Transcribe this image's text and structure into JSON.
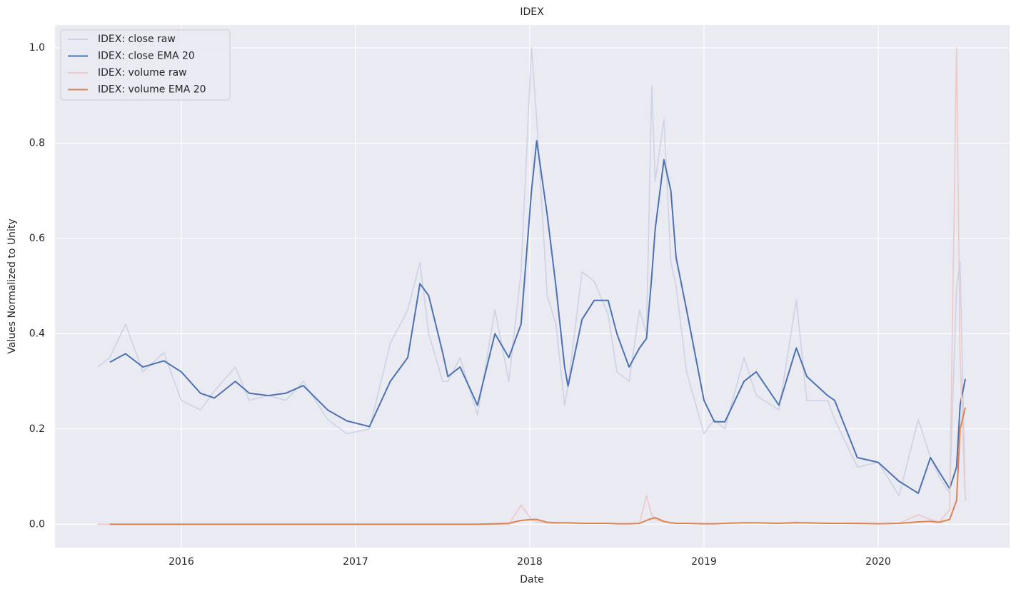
{
  "chart_data": {
    "type": "line",
    "title": "IDEX",
    "x_label": "Date",
    "y_label": "Values Normalized to Unity",
    "x": [
      2015.52,
      2015.59,
      2015.68,
      2015.78,
      2015.9,
      2016.0,
      2016.11,
      2016.19,
      2016.31,
      2016.39,
      2016.5,
      2016.6,
      2016.7,
      2016.84,
      2016.95,
      2017.08,
      2017.2,
      2017.3,
      2017.37,
      2017.42,
      2017.5,
      2017.53,
      2017.6,
      2017.7,
      2017.8,
      2017.88,
      2017.95,
      2018.01,
      2018.04,
      2018.1,
      2018.15,
      2018.2,
      2018.22,
      2018.3,
      2018.37,
      2018.45,
      2018.5,
      2018.57,
      2018.63,
      2018.67,
      2018.7,
      2018.72,
      2018.77,
      2018.81,
      2018.84,
      2018.9,
      2019.0,
      2019.06,
      2019.12,
      2019.23,
      2019.3,
      2019.43,
      2019.53,
      2019.59,
      2019.71,
      2019.75,
      2019.88,
      2020.0,
      2020.12,
      2020.23,
      2020.3,
      2020.35,
      2020.41,
      2020.45,
      2020.47,
      2020.5
    ],
    "series": [
      {
        "name": "IDEX: close raw",
        "color": "#ccd3e4",
        "values": [
          0.33,
          0.35,
          0.42,
          0.32,
          0.36,
          0.26,
          0.24,
          0.28,
          0.33,
          0.26,
          0.27,
          0.26,
          0.3,
          0.22,
          0.19,
          0.2,
          0.38,
          0.45,
          0.55,
          0.4,
          0.3,
          0.3,
          0.35,
          0.23,
          0.45,
          0.3,
          0.53,
          1.0,
          0.85,
          0.48,
          0.42,
          0.25,
          0.29,
          0.53,
          0.51,
          0.44,
          0.32,
          0.3,
          0.45,
          0.4,
          0.92,
          0.72,
          0.85,
          0.55,
          0.5,
          0.32,
          0.19,
          0.22,
          0.2,
          0.35,
          0.27,
          0.24,
          0.47,
          0.26,
          0.26,
          0.22,
          0.12,
          0.13,
          0.06,
          0.22,
          0.14,
          0.1,
          0.065,
          0.5,
          0.55,
          0.05
        ]
      },
      {
        "name": "IDEX: close EMA 20",
        "color": "#4c72b0",
        "values": [
          null,
          0.34,
          0.358,
          0.33,
          0.343,
          0.32,
          0.275,
          0.265,
          0.3,
          0.275,
          0.27,
          0.275,
          0.291,
          0.24,
          0.217,
          0.205,
          0.3,
          0.35,
          0.505,
          0.48,
          0.36,
          0.31,
          0.33,
          0.25,
          0.4,
          0.35,
          0.42,
          0.7,
          0.805,
          0.65,
          0.5,
          0.33,
          0.29,
          0.43,
          0.47,
          0.47,
          0.4,
          0.33,
          0.37,
          0.39,
          0.52,
          0.62,
          0.765,
          0.7,
          0.56,
          0.45,
          0.26,
          0.215,
          0.215,
          0.3,
          0.32,
          0.25,
          0.37,
          0.31,
          0.27,
          0.26,
          0.14,
          0.13,
          0.09,
          0.065,
          0.14,
          0.11,
          0.075,
          0.12,
          0.25,
          0.305
        ]
      },
      {
        "name": "IDEX: volume raw",
        "color": "#ecc8c6",
        "values": [
          0,
          0,
          0,
          0,
          0,
          0,
          0,
          0,
          0,
          0,
          0,
          0,
          0,
          0,
          0,
          0,
          0,
          0,
          0,
          0,
          0,
          0,
          0,
          0,
          0,
          0,
          0.04,
          0.01,
          0.005,
          0.003,
          0.002,
          0.003,
          0.002,
          0.002,
          0.002,
          0.002,
          0.001,
          0.001,
          0.002,
          0.06,
          0.02,
          0.01,
          0.005,
          0.003,
          0.002,
          0.002,
          0.001,
          0.001,
          0.002,
          0.003,
          0.003,
          0.002,
          0.005,
          0.002,
          0.002,
          0.002,
          0.001,
          0.001,
          0.002,
          0.02,
          0.01,
          0.005,
          0.03,
          1.0,
          0.35,
          0.05
        ]
      },
      {
        "name": "IDEX: volume EMA 20",
        "color": "#dd8452",
        "values": [
          null,
          0,
          0,
          0,
          0,
          0,
          0,
          0,
          0,
          0,
          0,
          0,
          0,
          0,
          0,
          0,
          0,
          0,
          0,
          0,
          0,
          0,
          0,
          0,
          0.001,
          0.002,
          0.008,
          0.01,
          0.01,
          0.004,
          0.003,
          0.003,
          0.003,
          0.002,
          0.002,
          0.002,
          0.001,
          0.001,
          0.002,
          0.008,
          0.012,
          0.014,
          0.006,
          0.003,
          0.002,
          0.002,
          0.001,
          0.001,
          0.002,
          0.003,
          0.003,
          0.002,
          0.003,
          0.003,
          0.002,
          0.002,
          0.002,
          0.001,
          0.002,
          0.005,
          0.006,
          0.004,
          0.01,
          0.05,
          0.2,
          0.245
        ]
      }
    ],
    "xlim": [
      2015.275,
      2020.754
    ],
    "xticks": [
      2016,
      2017,
      2018,
      2019,
      2020
    ],
    "ylim": [
      -0.049,
      1.048
    ],
    "yticks": [
      {
        "value": 0,
        "label": "0.0"
      },
      0.2,
      0.4,
      0.6,
      0.8,
      {
        "value": 1,
        "label": "1.0"
      }
    ],
    "grid": true,
    "legend": "upper left",
    "background": "#eaeaf2"
  }
}
